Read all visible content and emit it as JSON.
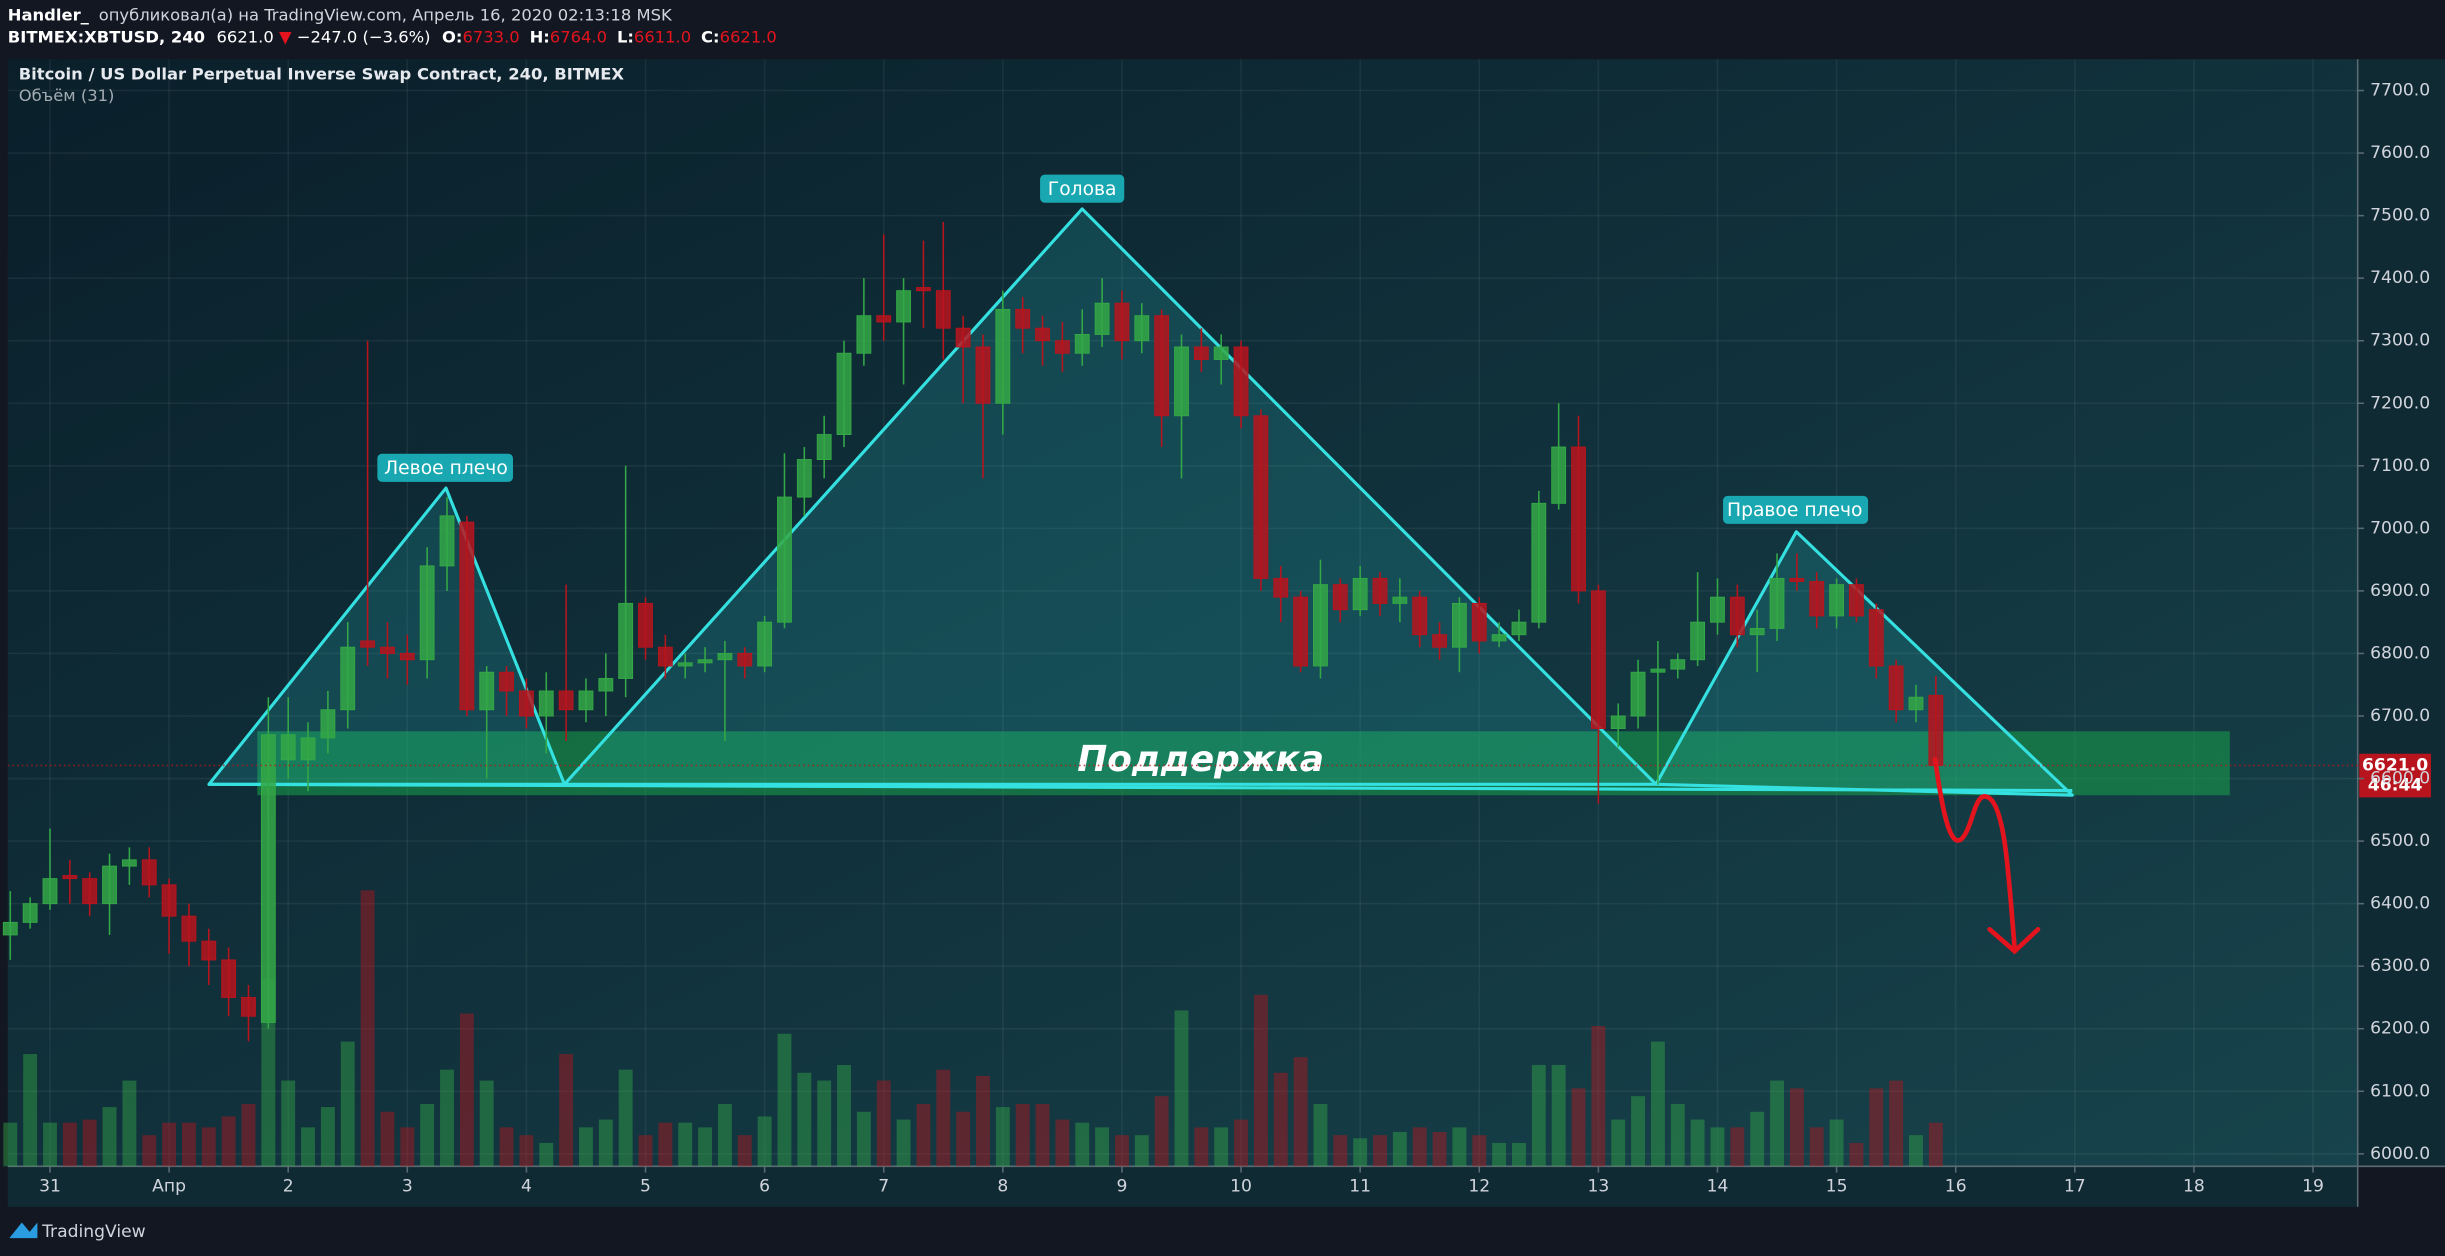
{
  "header": {
    "author": "Handler_",
    "published": "опубликовал(а) на TradingView.com, Апрель 16, 2020 02:13:18 MSK",
    "symbol": "BITMEX:XBTUSD, 240",
    "last": "6621.0",
    "change_arrow": "▼",
    "change": "−247.0 (−3.6%)",
    "ohlc": [
      {
        "key": "O:",
        "value": "6733.0"
      },
      {
        "key": "H:",
        "value": "6764.0"
      },
      {
        "key": "L:",
        "value": "6611.0"
      },
      {
        "key": "C:",
        "value": "6621.0"
      }
    ]
  },
  "chart_data": {
    "type": "candlestick",
    "title": "Bitcoin / US Dollar Perpetual Inverse Swap Contract, 240, BITMEX",
    "subtitle": "Объём (31)",
    "annotations": {
      "left_shoulder": "Левое плечо",
      "head": "Голова",
      "right_shoulder": "Правое плечо",
      "support": "Поддержка"
    },
    "last_price_label": "6621.0",
    "countdown": "46:44",
    "up_color": "#34a846",
    "down_color": "#b8141d",
    "grid": true,
    "xlim": [
      -8.5,
      465
    ],
    "ylim": [
      5980,
      7750
    ],
    "xticks": [
      {
        "value": 0,
        "label": "31"
      },
      {
        "value": 24,
        "label": "Апр"
      },
      {
        "value": 48,
        "label": "2"
      },
      {
        "value": 72,
        "label": "3"
      },
      {
        "value": 96,
        "label": "4"
      },
      {
        "value": 120,
        "label": "5"
      },
      {
        "value": 144,
        "label": "6"
      },
      {
        "value": 168,
        "label": "7"
      },
      {
        "value": 192,
        "label": "8"
      },
      {
        "value": 216,
        "label": "9"
      },
      {
        "value": 240,
        "label": "10"
      },
      {
        "value": 264,
        "label": "11"
      },
      {
        "value": 288,
        "label": "12"
      },
      {
        "value": 312,
        "label": "13"
      },
      {
        "value": 336,
        "label": "14"
      },
      {
        "value": 360,
        "label": "15"
      },
      {
        "value": 384,
        "label": "16"
      },
      {
        "value": 408,
        "label": "17"
      },
      {
        "value": 432,
        "label": "18"
      },
      {
        "value": 456,
        "label": "19"
      }
    ],
    "yticks": [
      {
        "value": 6000,
        "label": "6000.0"
      },
      {
        "value": 6100,
        "label": "6100.0"
      },
      {
        "value": 6200,
        "label": "6200.0"
      },
      {
        "value": 6300,
        "label": "6300.0"
      },
      {
        "value": 6400,
        "label": "6400.0"
      },
      {
        "value": 6500,
        "label": "6500.0"
      },
      {
        "value": 6600,
        "label": "6600.0"
      },
      {
        "value": 6700,
        "label": "6700.0"
      },
      {
        "value": 6800,
        "label": "6800.0"
      },
      {
        "value": 6900,
        "label": "6900.0"
      },
      {
        "value": 7000,
        "label": "7000.0"
      },
      {
        "value": 7100,
        "label": "7100.0"
      },
      {
        "value": 7200,
        "label": "7200.0"
      },
      {
        "value": 7300,
        "label": "7300.0"
      },
      {
        "value": 7400,
        "label": "7400.0"
      },
      {
        "value": 7500,
        "label": "7500.0"
      },
      {
        "value": 7600,
        "label": "7600.0"
      },
      {
        "value": 7700,
        "label": "7700.0"
      }
    ],
    "x": [
      -8,
      -4,
      0,
      4,
      8,
      12,
      16,
      20,
      24,
      28,
      32,
      36,
      40,
      44,
      48,
      52,
      56,
      60,
      64,
      68,
      72,
      76,
      80,
      84,
      88,
      92,
      96,
      100,
      104,
      108,
      112,
      116,
      120,
      124,
      128,
      132,
      136,
      140,
      144,
      148,
      152,
      156,
      160,
      164,
      168,
      172,
      176,
      180,
      184,
      188,
      192,
      196,
      200,
      204,
      208,
      212,
      216,
      220,
      224,
      228,
      232,
      236,
      240,
      244,
      248,
      252,
      256,
      260,
      264,
      268,
      272,
      276,
      280,
      284,
      288,
      292,
      296,
      300,
      304,
      308,
      312,
      316,
      320,
      324,
      328,
      332,
      336,
      340,
      344,
      348,
      352,
      356,
      360,
      364,
      368,
      372,
      376,
      380
    ],
    "open": [
      6350,
      6370,
      6400,
      6445,
      6440,
      6400,
      6460,
      6470,
      6430,
      6380,
      6340,
      6310,
      6250,
      6210,
      6630,
      6630,
      6665,
      6710,
      6820,
      6810,
      6800,
      6790,
      6940,
      7010,
      6710,
      6770,
      6740,
      6700,
      6740,
      6710,
      6740,
      6760,
      6880,
      6810,
      6780,
      6785,
      6790,
      6800,
      6780,
      6850,
      7050,
      7110,
      7150,
      7280,
      7340,
      7330,
      7385,
      7380,
      7320,
      7290,
      7200,
      7350,
      7320,
      7300,
      7280,
      7310,
      7360,
      7300,
      7340,
      7180,
      7290,
      7270,
      7290,
      7180,
      6920,
      6890,
      6780,
      6910,
      6870,
      6920,
      6880,
      6890,
      6830,
      6810,
      6880,
      6820,
      6830,
      6850,
      7040,
      7130,
      6900,
      6680,
      6700,
      6770,
      6775,
      6790,
      6850,
      6890,
      6830,
      6840,
      6920,
      6915,
      6860,
      6910,
      6870,
      6780,
      6710,
      6733
    ],
    "high": [
      6420,
      6410,
      6520,
      6470,
      6450,
      6480,
      6490,
      6490,
      6440,
      6400,
      6360,
      6330,
      6270,
      6730,
      6730,
      6690,
      6740,
      6850,
      7300,
      6850,
      6830,
      6970,
      7050,
      7020,
      6780,
      6780,
      6760,
      6770,
      6910,
      6760,
      6800,
      7100,
      6890,
      6830,
      6800,
      6810,
      6820,
      6810,
      6860,
      7120,
      7130,
      7180,
      7300,
      7400,
      7470,
      7400,
      7460,
      7490,
      7340,
      7310,
      7380,
      7370,
      7340,
      7330,
      7350,
      7400,
      7380,
      7360,
      7350,
      7310,
      7320,
      7310,
      7300,
      7190,
      6940,
      6900,
      6950,
      6920,
      6940,
      6930,
      6920,
      6900,
      6850,
      6890,
      6890,
      6850,
      6870,
      7060,
      7200,
      7180,
      6910,
      6720,
      6790,
      6820,
      6800,
      6930,
      6920,
      6910,
      6870,
      6960,
      6960,
      6930,
      6920,
      6920,
      6880,
      6790,
      6750,
      6764
    ],
    "low": [
      6310,
      6360,
      6390,
      6400,
      6380,
      6350,
      6430,
      6410,
      6320,
      6300,
      6270,
      6220,
      6180,
      6200,
      6600,
      6580,
      6640,
      6680,
      6780,
      6760,
      6750,
      6760,
      6900,
      6700,
      6600,
      6700,
      6680,
      6640,
      6660,
      6690,
      6700,
      6730,
      6790,
      6760,
      6760,
      6770,
      6660,
      6760,
      6770,
      6840,
      7020,
      7080,
      7130,
      7260,
      7300,
      7230,
      7320,
      7270,
      7200,
      7080,
      7150,
      7280,
      7260,
      7250,
      7260,
      7290,
      7270,
      7280,
      7130,
      7080,
      7250,
      7230,
      7160,
      6900,
      6850,
      6770,
      6760,
      6850,
      6860,
      6860,
      6850,
      6810,
      6790,
      6770,
      6800,
      6810,
      6820,
      6840,
      7030,
      6880,
      6560,
      6650,
      6680,
      6590,
      6760,
      6780,
      6830,
      6810,
      6770,
      6820,
      6900,
      6840,
      6840,
      6850,
      6760,
      6690,
      6690,
      6611
    ],
    "close": [
      6370,
      6400,
      6440,
      6440,
      6400,
      6460,
      6470,
      6430,
      6380,
      6340,
      6310,
      6250,
      6220,
      6670,
      6670,
      6665,
      6710,
      6810,
      6810,
      6800,
      6790,
      6940,
      7020,
      6710,
      6770,
      6740,
      6700,
      6740,
      6710,
      6740,
      6760,
      6880,
      6810,
      6780,
      6785,
      6790,
      6800,
      6780,
      6850,
      7050,
      7110,
      7150,
      7280,
      7340,
      7330,
      7380,
      7380,
      7320,
      7290,
      7200,
      7350,
      7320,
      7300,
      7280,
      7310,
      7360,
      7300,
      7340,
      7180,
      7290,
      7270,
      7290,
      7180,
      6920,
      6890,
      6780,
      6910,
      6870,
      6920,
      6880,
      6890,
      6830,
      6810,
      6880,
      6820,
      6830,
      6850,
      7040,
      7130,
      6900,
      6680,
      6700,
      6770,
      6775,
      6790,
      6850,
      6890,
      6830,
      6840,
      6920,
      6915,
      6860,
      6910,
      6860,
      6780,
      6710,
      6730,
      6621
    ],
    "volume_ylim": [
      0,
      710
    ],
    "volume": [
      28,
      72,
      28,
      28,
      30,
      38,
      55,
      20,
      28,
      28,
      25,
      32,
      40,
      120,
      55,
      25,
      38,
      80,
      177,
      35,
      25,
      40,
      62,
      98,
      55,
      25,
      20,
      15,
      72,
      25,
      30,
      62,
      20,
      28,
      28,
      25,
      40,
      20,
      32,
      85,
      60,
      55,
      65,
      35,
      55,
      30,
      40,
      62,
      35,
      58,
      38,
      40,
      40,
      30,
      28,
      25,
      20,
      20,
      45,
      100,
      25,
      25,
      30,
      110,
      60,
      70,
      40,
      20,
      18,
      20,
      22,
      25,
      22,
      25,
      20,
      15,
      15,
      65,
      65,
      50,
      90,
      30,
      45,
      80,
      40,
      30,
      25,
      25,
      35,
      55,
      50,
      25,
      30,
      15,
      50,
      55,
      20,
      28
    ]
  },
  "footer": {
    "brand": "TradingView"
  }
}
